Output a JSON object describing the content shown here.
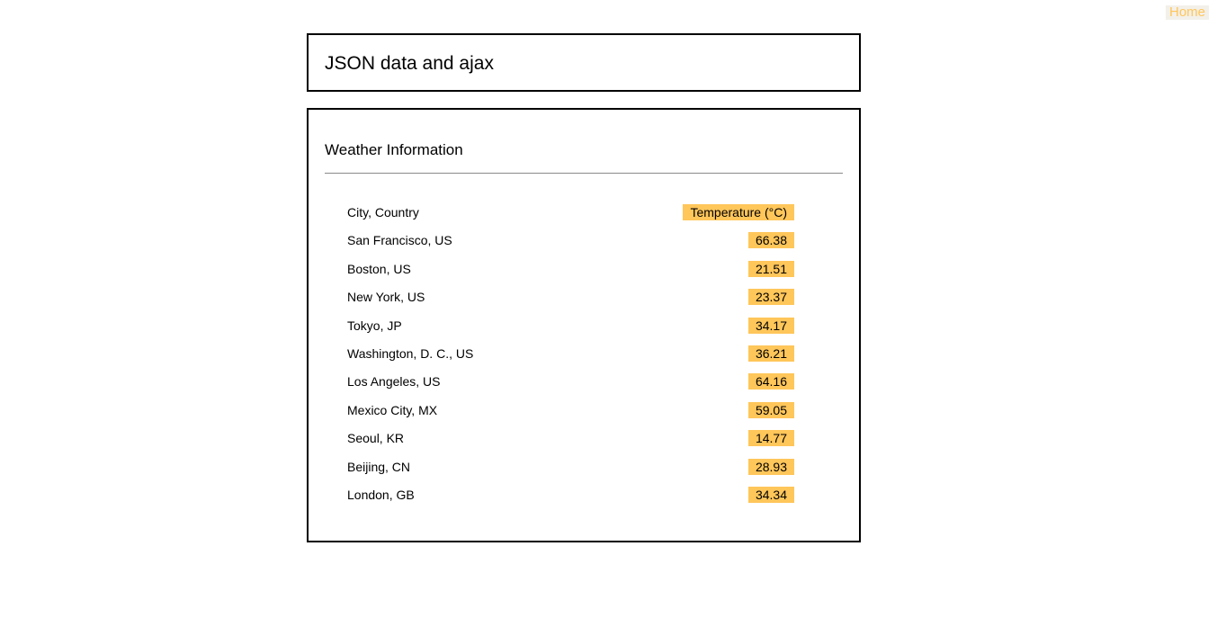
{
  "nav": {
    "home_label": "Home"
  },
  "header": {
    "title": "JSON data and ajax"
  },
  "weather": {
    "section_title": "Weather Information",
    "columns": {
      "city": "City, Country",
      "temperature": "Temperature (°C)"
    },
    "rows": [
      {
        "city": "San Francisco, US",
        "temp": "66.38"
      },
      {
        "city": "Boston, US",
        "temp": "21.51"
      },
      {
        "city": "New York, US",
        "temp": "23.37"
      },
      {
        "city": "Tokyo, JP",
        "temp": "34.17"
      },
      {
        "city": "Washington, D. C., US",
        "temp": "36.21"
      },
      {
        "city": "Los Angeles, US",
        "temp": "64.16"
      },
      {
        "city": "Mexico City, MX",
        "temp": "59.05"
      },
      {
        "city": "Seoul, KR",
        "temp": "14.77"
      },
      {
        "city": "Beijing, CN",
        "temp": "28.93"
      },
      {
        "city": "London, GB",
        "temp": "34.34"
      }
    ]
  },
  "colors": {
    "accent": "#ffc65a",
    "border": "#000000",
    "divider": "#8a8a8a"
  }
}
